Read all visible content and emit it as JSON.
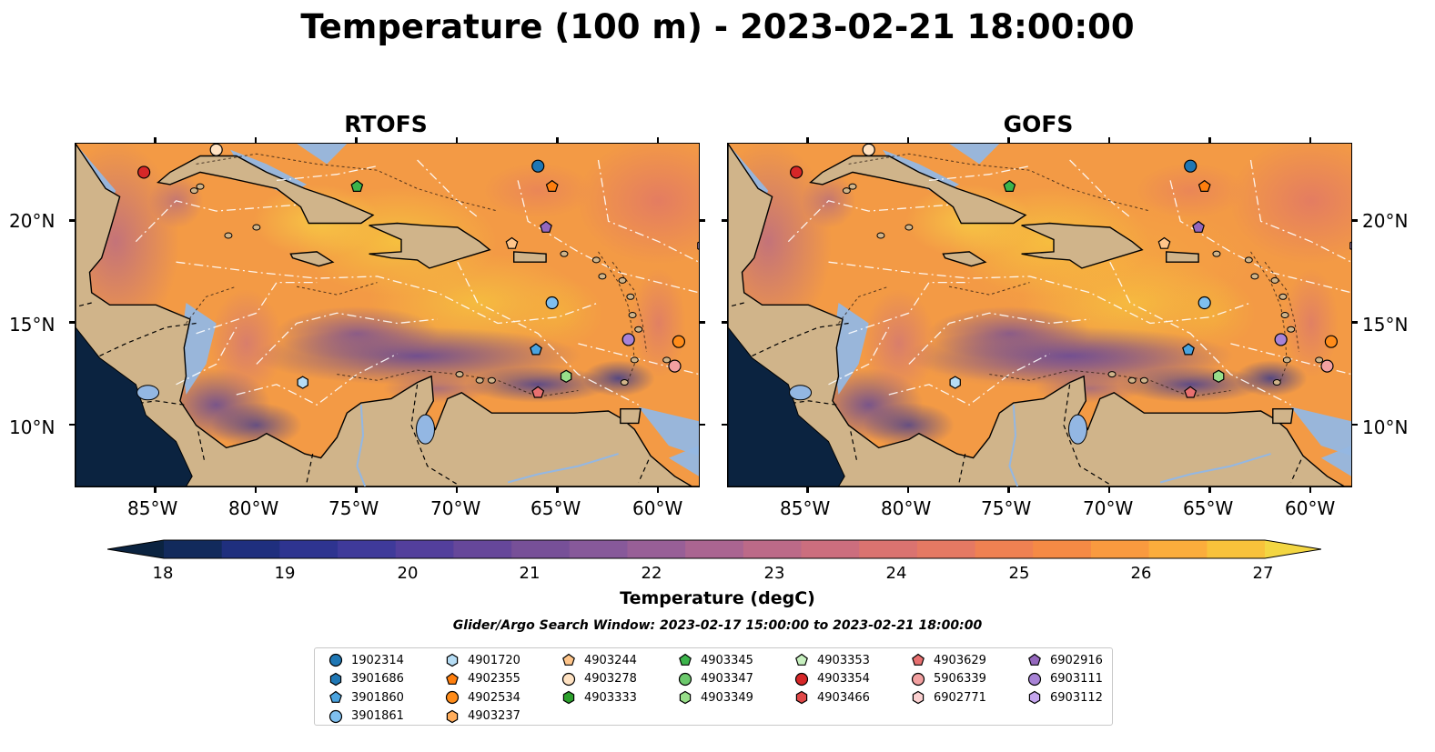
{
  "title": "Temperature (100 m) - 2023-02-21 18:00:00",
  "panels": [
    {
      "name": "RTOFS"
    },
    {
      "name": "GOFS"
    }
  ],
  "lon_ticks": [
    "85°W",
    "80°W",
    "75°W",
    "70°W",
    "65°W",
    "60°W"
  ],
  "lat_ticks": [
    "20°N",
    "15°N",
    "10°N"
  ],
  "colorbar": {
    "ticks": [
      "18",
      "19",
      "20",
      "21",
      "22",
      "23",
      "24",
      "25",
      "26",
      "27"
    ],
    "label": "Temperature (degC)",
    "colors": [
      "#0b2340",
      "#122a5c",
      "#1f2f7e",
      "#2e3490",
      "#3f3a9a",
      "#533f9c",
      "#66479a",
      "#775098",
      "#87599a",
      "#985f97",
      "#aa6591",
      "#bc6a88",
      "#cc6e7e",
      "#da7370",
      "#e57963",
      "#ef8152",
      "#f58a45",
      "#f99a3f",
      "#fbad3c",
      "#f8c23b",
      "#f3d642"
    ]
  },
  "search_window": "Glider/Argo Search Window: 2023-02-17 15:00:00 to 2023-02-21 18:00:00",
  "floats": [
    {
      "id": "1902314",
      "marker": "circle",
      "color": "#1f77b4"
    },
    {
      "id": "3901686",
      "marker": "hexagon",
      "color": "#1f77b4"
    },
    {
      "id": "3901860",
      "marker": "pentagon",
      "color": "#4aa3df"
    },
    {
      "id": "3901861",
      "marker": "circle",
      "color": "#7fbfef"
    },
    {
      "id": "4901720",
      "marker": "hexagon",
      "color": "#b6ddf5"
    },
    {
      "id": "4902355",
      "marker": "pentagon",
      "color": "#ff7f0e"
    },
    {
      "id": "4902534",
      "marker": "circle",
      "color": "#ff8c1a"
    },
    {
      "id": "4903237",
      "marker": "hexagon",
      "color": "#ffad5c"
    },
    {
      "id": "4903244",
      "marker": "pentagon",
      "color": "#ffc58a"
    },
    {
      "id": "4903278",
      "marker": "circle",
      "color": "#ffe2c2"
    },
    {
      "id": "4903333",
      "marker": "hexagon",
      "color": "#2ca02c"
    },
    {
      "id": "4903345",
      "marker": "pentagon",
      "color": "#3cb44b"
    },
    {
      "id": "4903347",
      "marker": "circle",
      "color": "#6cc96c"
    },
    {
      "id": "4903349",
      "marker": "hexagon",
      "color": "#98df8a"
    },
    {
      "id": "4903353",
      "marker": "pentagon",
      "color": "#c7f0bf"
    },
    {
      "id": "4903354",
      "marker": "circle",
      "color": "#d62728"
    },
    {
      "id": "4903466",
      "marker": "hexagon",
      "color": "#e04848"
    },
    {
      "id": "4903629",
      "marker": "pentagon",
      "color": "#e87070"
    },
    {
      "id": "5906339",
      "marker": "circle",
      "color": "#f2a0a0"
    },
    {
      "id": "6902771",
      "marker": "hexagon",
      "color": "#fbd0d0"
    },
    {
      "id": "6902916",
      "marker": "pentagon",
      "color": "#9467bd"
    },
    {
      "id": "6903111",
      "marker": "circle",
      "color": "#a883d6"
    },
    {
      "id": "6903112",
      "marker": "hexagon",
      "color": "#c5a6ee"
    }
  ],
  "float_positions": [
    {
      "id": "1902314",
      "lon": -66.0,
      "lat": 22.7
    },
    {
      "id": "4903354",
      "lon": -85.6,
      "lat": 22.4
    },
    {
      "id": "4903278",
      "lon": -82.0,
      "lat": 23.5
    },
    {
      "id": "4903345",
      "lon": -75.0,
      "lat": 21.7
    },
    {
      "id": "4902355",
      "lon": -65.3,
      "lat": 21.7
    },
    {
      "id": "6902916",
      "lon": -65.6,
      "lat": 19.7
    },
    {
      "id": "4903244",
      "lon": -67.3,
      "lat": 18.9
    },
    {
      "id": "6903112",
      "lon": -57.8,
      "lat": 18.8
    },
    {
      "id": "3901861",
      "lon": -65.3,
      "lat": 16.0
    },
    {
      "id": "6903111",
      "lon": -61.5,
      "lat": 14.2
    },
    {
      "id": "4902534",
      "lon": -59.0,
      "lat": 14.1
    },
    {
      "id": "3901860",
      "lon": -66.1,
      "lat": 13.7
    },
    {
      "id": "5906339",
      "lon": -59.2,
      "lat": 12.9
    },
    {
      "id": "4903349",
      "lon": -64.6,
      "lat": 12.4
    },
    {
      "id": "4901720",
      "lon": -77.7,
      "lat": 12.1
    },
    {
      "id": "4903629",
      "lon": -66.0,
      "lat": 11.6
    },
    {
      "id": "4903347",
      "lon": -57.6,
      "lat": 8.8
    }
  ]
}
